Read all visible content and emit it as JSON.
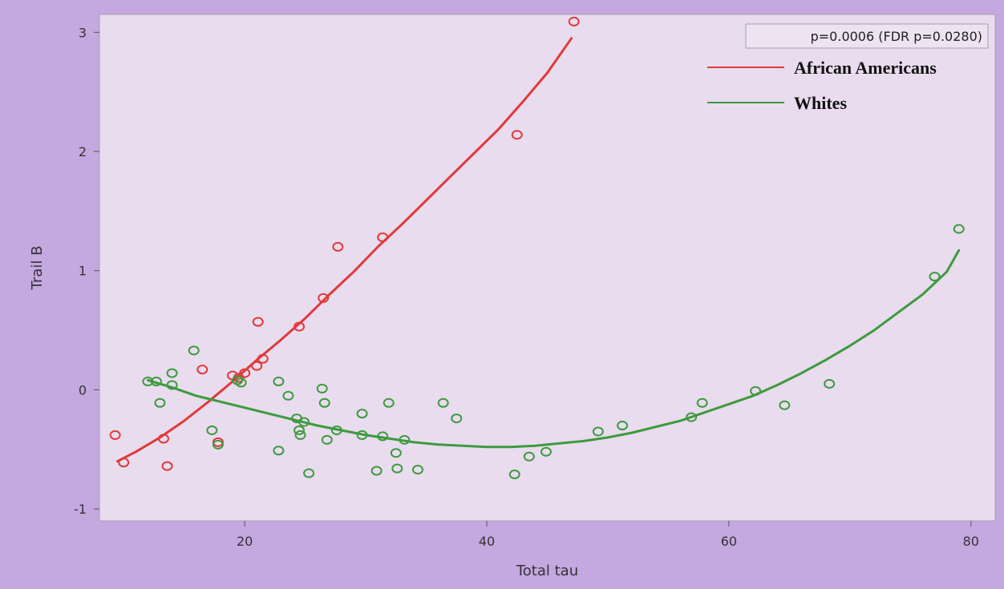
{
  "chart_data": {
    "type": "scatter",
    "xlabel": "Total tau",
    "ylabel": "Trail B",
    "xlim": [
      8,
      82
    ],
    "ylim": [
      -1.1,
      3.15
    ],
    "xticks": [
      20,
      40,
      60,
      80
    ],
    "yticks": [
      -1,
      0,
      1,
      2,
      3
    ],
    "grid": false,
    "legend_position": "top-right",
    "annotation": "p=0.0006 (FDR p=0.0280)",
    "colors": {
      "background": "#c4a8e0",
      "plot_area": "#e8dcee",
      "plot_border": "#a79bb2"
    },
    "series": [
      {
        "name": "African Americans",
        "color": "#e03a3a",
        "points": [
          {
            "x": 9.3,
            "y": -0.38
          },
          {
            "x": 10.0,
            "y": -0.61
          },
          {
            "x": 13.3,
            "y": -0.41
          },
          {
            "x": 13.6,
            "y": -0.64
          },
          {
            "x": 16.5,
            "y": 0.17
          },
          {
            "x": 17.8,
            "y": -0.44
          },
          {
            "x": 19.0,
            "y": 0.12
          },
          {
            "x": 19.5,
            "y": 0.1
          },
          {
            "x": 20.0,
            "y": 0.14
          },
          {
            "x": 21.0,
            "y": 0.2
          },
          {
            "x": 21.1,
            "y": 0.57
          },
          {
            "x": 21.5,
            "y": 0.26
          },
          {
            "x": 24.5,
            "y": 0.53
          },
          {
            "x": 26.5,
            "y": 0.77
          },
          {
            "x": 27.7,
            "y": 1.2
          },
          {
            "x": 31.4,
            "y": 1.28
          },
          {
            "x": 42.5,
            "y": 2.14
          },
          {
            "x": 47.2,
            "y": 3.09
          }
        ],
        "fit": [
          {
            "x": 9.5,
            "y": -0.6
          },
          {
            "x": 11.0,
            "y": -0.52
          },
          {
            "x": 13.0,
            "y": -0.4
          },
          {
            "x": 15.0,
            "y": -0.26
          },
          {
            "x": 17.0,
            "y": -0.1
          },
          {
            "x": 19.0,
            "y": 0.07
          },
          {
            "x": 21.0,
            "y": 0.25
          },
          {
            "x": 23.0,
            "y": 0.42
          },
          {
            "x": 25.0,
            "y": 0.6
          },
          {
            "x": 27.0,
            "y": 0.8
          },
          {
            "x": 29.0,
            "y": 0.99
          },
          {
            "x": 31.0,
            "y": 1.2
          },
          {
            "x": 33.0,
            "y": 1.39
          },
          {
            "x": 35.0,
            "y": 1.59
          },
          {
            "x": 37.0,
            "y": 1.79
          },
          {
            "x": 39.0,
            "y": 1.99
          },
          {
            "x": 41.0,
            "y": 2.19
          },
          {
            "x": 43.0,
            "y": 2.42
          },
          {
            "x": 45.0,
            "y": 2.66
          },
          {
            "x": 47.0,
            "y": 2.95
          }
        ]
      },
      {
        "name": "Whites",
        "color": "#3e9a3e",
        "points": [
          {
            "x": 12.0,
            "y": 0.07
          },
          {
            "x": 12.7,
            "y": 0.07
          },
          {
            "x": 13.0,
            "y": -0.11
          },
          {
            "x": 14.0,
            "y": 0.14
          },
          {
            "x": 14.0,
            "y": 0.04
          },
          {
            "x": 15.8,
            "y": 0.33
          },
          {
            "x": 17.3,
            "y": -0.34
          },
          {
            "x": 17.8,
            "y": -0.46
          },
          {
            "x": 19.4,
            "y": 0.08
          },
          {
            "x": 19.7,
            "y": 0.06
          },
          {
            "x": 22.8,
            "y": 0.07
          },
          {
            "x": 22.8,
            "y": -0.51
          },
          {
            "x": 23.6,
            "y": -0.05
          },
          {
            "x": 24.3,
            "y": -0.24
          },
          {
            "x": 24.5,
            "y": -0.34
          },
          {
            "x": 24.6,
            "y": -0.38
          },
          {
            "x": 24.9,
            "y": -0.27
          },
          {
            "x": 25.3,
            "y": -0.7
          },
          {
            "x": 26.4,
            "y": 0.01
          },
          {
            "x": 26.6,
            "y": -0.11
          },
          {
            "x": 26.8,
            "y": -0.42
          },
          {
            "x": 27.6,
            "y": -0.34
          },
          {
            "x": 29.7,
            "y": -0.2
          },
          {
            "x": 29.7,
            "y": -0.38
          },
          {
            "x": 30.9,
            "y": -0.68
          },
          {
            "x": 31.4,
            "y": -0.39
          },
          {
            "x": 31.9,
            "y": -0.11
          },
          {
            "x": 32.5,
            "y": -0.53
          },
          {
            "x": 32.6,
            "y": -0.66
          },
          {
            "x": 33.2,
            "y": -0.42
          },
          {
            "x": 34.3,
            "y": -0.67
          },
          {
            "x": 36.4,
            "y": -0.11
          },
          {
            "x": 37.5,
            "y": -0.24
          },
          {
            "x": 42.3,
            "y": -0.71
          },
          {
            "x": 43.5,
            "y": -0.56
          },
          {
            "x": 44.9,
            "y": -0.52
          },
          {
            "x": 49.2,
            "y": -0.35
          },
          {
            "x": 51.2,
            "y": -0.3
          },
          {
            "x": 56.9,
            "y": -0.23
          },
          {
            "x": 57.8,
            "y": -0.11
          },
          {
            "x": 62.2,
            "y": -0.01
          },
          {
            "x": 64.6,
            "y": -0.13
          },
          {
            "x": 68.3,
            "y": 0.05
          },
          {
            "x": 77.0,
            "y": 0.95
          },
          {
            "x": 79.0,
            "y": 1.35
          }
        ],
        "fit": [
          {
            "x": 12.0,
            "y": 0.08
          },
          {
            "x": 14.0,
            "y": 0.02
          },
          {
            "x": 16.0,
            "y": -0.05
          },
          {
            "x": 18.0,
            "y": -0.1
          },
          {
            "x": 20.0,
            "y": -0.15
          },
          {
            "x": 22.0,
            "y": -0.2
          },
          {
            "x": 24.0,
            "y": -0.25
          },
          {
            "x": 26.0,
            "y": -0.3
          },
          {
            "x": 28.0,
            "y": -0.34
          },
          {
            "x": 30.0,
            "y": -0.38
          },
          {
            "x": 32.0,
            "y": -0.41
          },
          {
            "x": 34.0,
            "y": -0.44
          },
          {
            "x": 36.0,
            "y": -0.46
          },
          {
            "x": 38.0,
            "y": -0.47
          },
          {
            "x": 40.0,
            "y": -0.48
          },
          {
            "x": 42.0,
            "y": -0.48
          },
          {
            "x": 44.0,
            "y": -0.47
          },
          {
            "x": 46.0,
            "y": -0.45
          },
          {
            "x": 48.0,
            "y": -0.43
          },
          {
            "x": 50.0,
            "y": -0.4
          },
          {
            "x": 52.0,
            "y": -0.36
          },
          {
            "x": 54.0,
            "y": -0.31
          },
          {
            "x": 56.0,
            "y": -0.26
          },
          {
            "x": 58.0,
            "y": -0.19
          },
          {
            "x": 60.0,
            "y": -0.12
          },
          {
            "x": 62.0,
            "y": -0.05
          },
          {
            "x": 64.0,
            "y": 0.04
          },
          {
            "x": 66.0,
            "y": 0.14
          },
          {
            "x": 68.0,
            "y": 0.25
          },
          {
            "x": 70.0,
            "y": 0.37
          },
          {
            "x": 72.0,
            "y": 0.5
          },
          {
            "x": 74.0,
            "y": 0.65
          },
          {
            "x": 76.0,
            "y": 0.8
          },
          {
            "x": 78.0,
            "y": 0.99
          },
          {
            "x": 79.0,
            "y": 1.17
          }
        ]
      }
    ]
  }
}
